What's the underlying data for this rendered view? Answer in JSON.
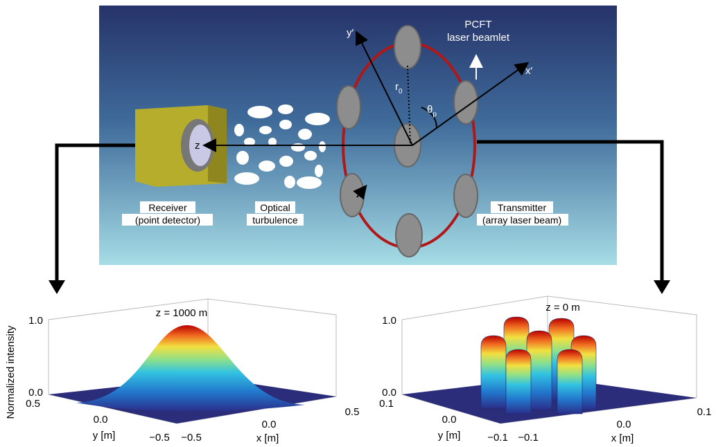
{
  "diagram": {
    "beamlet_label": [
      "PCFT",
      "laser beamlet"
    ],
    "axes": {
      "y": "y′",
      "x": "x′",
      "z": "z"
    },
    "r0": {
      "base": "r",
      "sub": "0"
    },
    "theta": {
      "base": "θ",
      "sub": "p"
    },
    "receiver": [
      "Receiver",
      "(point detector)"
    ],
    "turbulence": [
      "Optical",
      "turbulence"
    ],
    "transmitter": [
      "Transmitter",
      "(array laser beam)"
    ]
  },
  "plots": [
    {
      "title": "z = 1000 m",
      "z_label": "Normalized intensity",
      "z_ticks": [
        "0.0",
        "1.0"
      ],
      "y_ticks": [
        "0.5",
        "0.0",
        "−0.5"
      ],
      "x_ticks": [
        "−0.5",
        "0.0",
        "0.5"
      ],
      "y_label": "y [m]",
      "x_label": "x [m]"
    },
    {
      "title": "z = 0 m",
      "z_ticks": [
        "0.0",
        "1.0"
      ],
      "y_ticks": [
        "0.1",
        "0.0",
        "−0.1"
      ],
      "x_ticks": [
        "−0.1",
        "0.0",
        "0.1"
      ],
      "y_label": "y [m]",
      "x_label": "x [m]"
    }
  ]
}
